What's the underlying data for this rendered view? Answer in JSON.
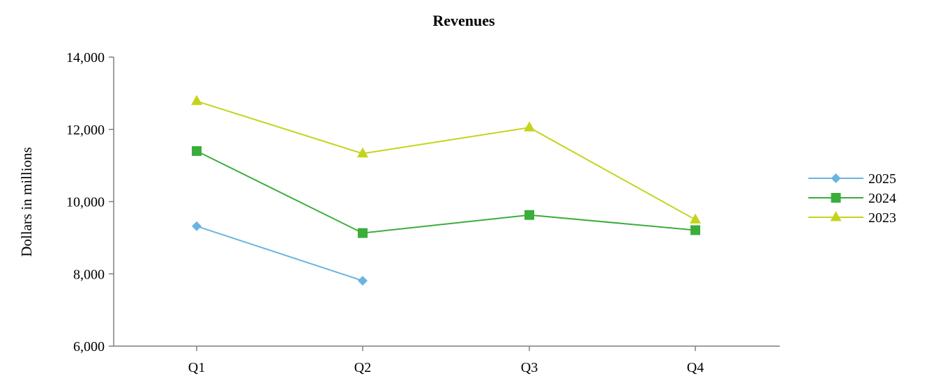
{
  "chart_data": {
    "type": "line",
    "title": "Revenues",
    "xlabel": "",
    "ylabel": "Dollars in millions",
    "categories": [
      "Q1",
      "Q2",
      "Q3",
      "Q4"
    ],
    "ylim": [
      6000,
      14000
    ],
    "yticks": [
      "6,000",
      "8,000",
      "10,000",
      "12,000",
      "14,000"
    ],
    "ytick_values": [
      6000,
      8000,
      10000,
      12000,
      14000
    ],
    "grid": false,
    "legend_position": "right",
    "series": [
      {
        "name": "2025",
        "values": [
          9320,
          7810,
          null,
          null
        ],
        "color": "#6ab4e2",
        "marker": "diamond"
      },
      {
        "name": "2024",
        "values": [
          11400,
          9130,
          9630,
          9210
        ],
        "color": "#3aad3a",
        "marker": "square"
      },
      {
        "name": "2023",
        "values": [
          12780,
          11330,
          12050,
          9500
        ],
        "color": "#c4d41b",
        "marker": "triangle"
      }
    ]
  }
}
